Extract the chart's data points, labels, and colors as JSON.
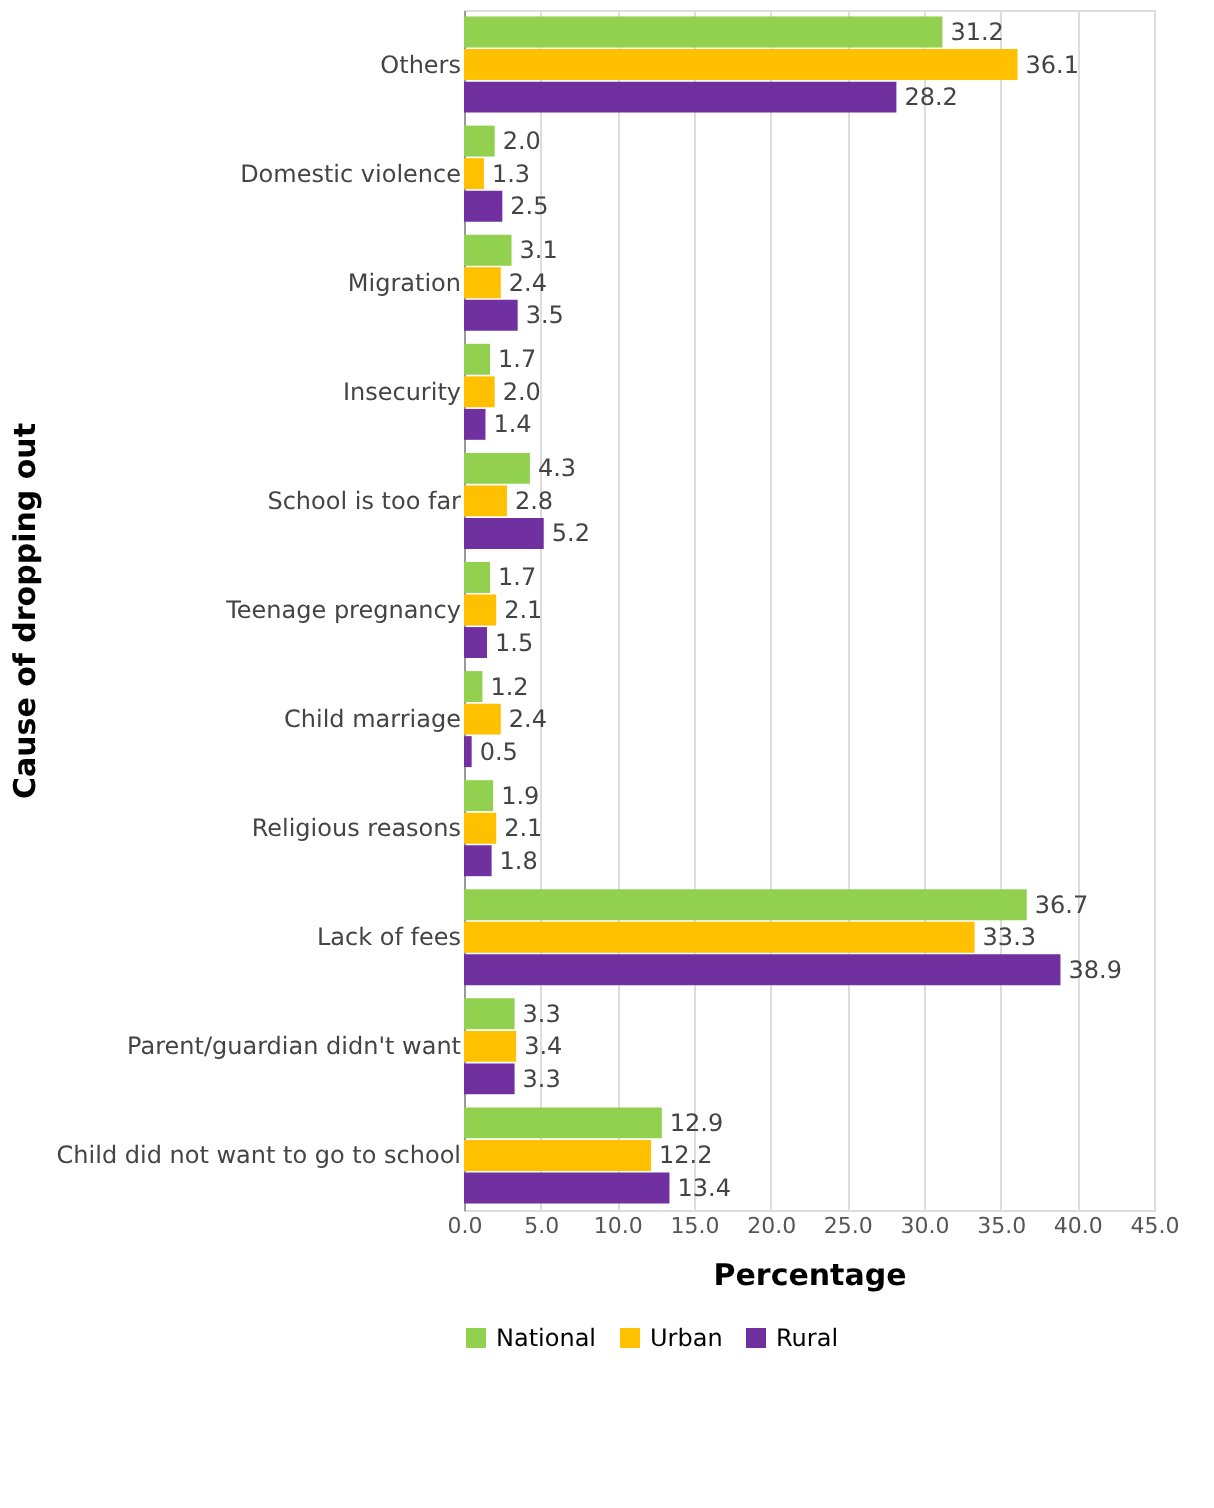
{
  "chart_data": {
    "type": "bar",
    "orientation": "horizontal",
    "xlabel": "Percentage",
    "ylabel": "Cause of dropping out",
    "categories": [
      "Others",
      "Domestic violence",
      "Migration",
      "Insecurity",
      "School is too far",
      "Teenage pregnancy",
      "Child marriage",
      "Religious reasons",
      "Lack of fees",
      "Parent/guardian didn't want",
      "Child did not want to go to school"
    ],
    "series": [
      {
        "name": "National",
        "color": "#92d050",
        "values": [
          31.2,
          2.0,
          3.1,
          1.7,
          4.3,
          1.7,
          1.2,
          1.9,
          36.7,
          3.3,
          12.9
        ],
        "value_labels": [
          "31.2",
          "2.0",
          "3.1",
          "1.7",
          "4.3",
          "1.7",
          "1.2",
          "1.9",
          "36.7",
          "3.3",
          "12.9"
        ]
      },
      {
        "name": "Urban",
        "color": "#ffc000",
        "values": [
          36.1,
          1.3,
          2.4,
          2.0,
          2.8,
          2.1,
          2.4,
          2.1,
          33.3,
          3.4,
          12.2
        ],
        "value_labels": [
          "36.1",
          "1.3",
          "2.4",
          "2.0",
          "2.8",
          "2.1",
          "2.4",
          "2.1",
          "33.3",
          "3.4",
          "12.2"
        ]
      },
      {
        "name": "Rural",
        "color": "#7030a0",
        "values": [
          28.2,
          2.5,
          3.5,
          1.4,
          5.2,
          1.5,
          0.5,
          1.8,
          38.9,
          3.3,
          13.4
        ],
        "value_labels": [
          "28.2",
          "2.5",
          "3.5",
          "1.4",
          "5.2",
          "1.5",
          "0.5",
          "1.8",
          "38.9",
          "3.3",
          "13.4"
        ]
      }
    ],
    "xlim": [
      0,
      45
    ],
    "xticks": [
      {
        "value": 0,
        "label": "0.0"
      },
      {
        "value": 5,
        "label": "5.0"
      },
      {
        "value": 10,
        "label": "10.0"
      },
      {
        "value": 15,
        "label": "15.0"
      },
      {
        "value": 20,
        "label": "20.0"
      },
      {
        "value": 25,
        "label": "25.0"
      },
      {
        "value": 30,
        "label": "30.0"
      },
      {
        "value": 35,
        "label": "35.0"
      },
      {
        "value": 40,
        "label": "40.0"
      },
      {
        "value": 45,
        "label": "45.0"
      }
    ],
    "grid": "x",
    "legend": "bottom"
  }
}
